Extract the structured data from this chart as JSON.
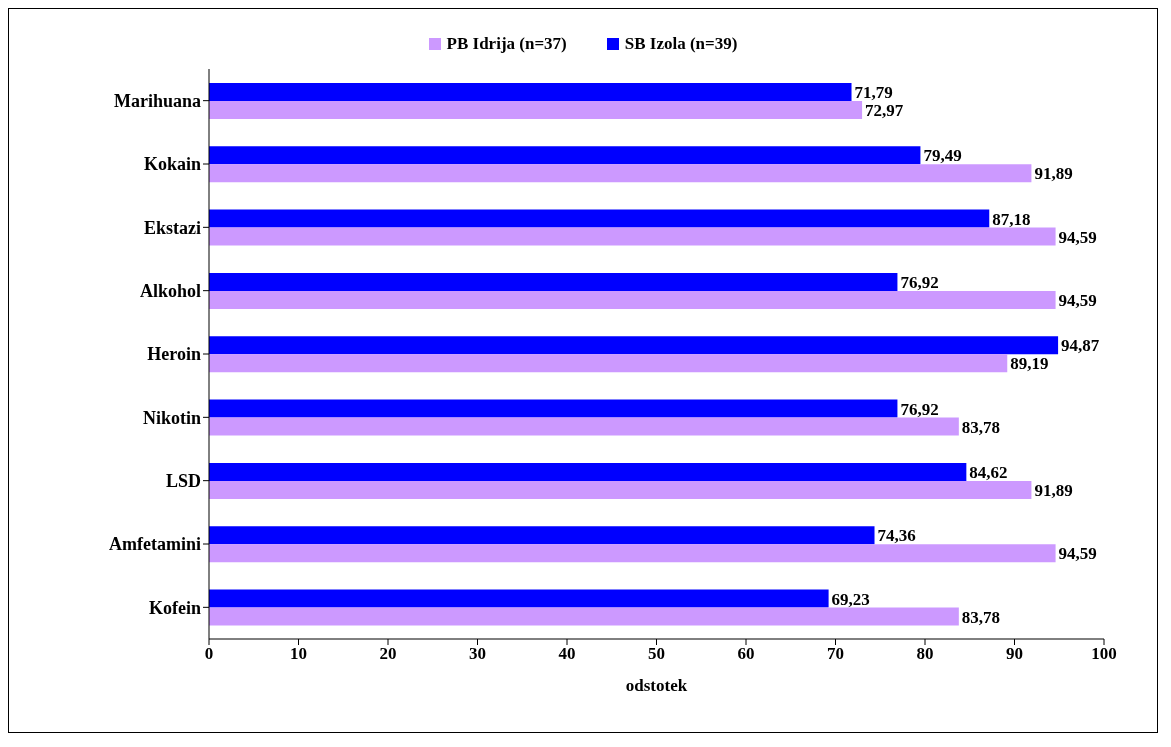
{
  "chart_data": {
    "type": "bar",
    "orientation": "horizontal",
    "xlabel": "odstotek",
    "categories": [
      "Marihuana",
      "Kokain",
      "Ekstazi",
      "Alkohol",
      "Heroin",
      "Nikotin",
      "LSD",
      "Amfetamini",
      "Kofein"
    ],
    "series": [
      {
        "name": "PB Idrija (n=37)",
        "color": "#cc99ff",
        "values": [
          72.97,
          91.89,
          94.59,
          94.59,
          89.19,
          83.78,
          91.89,
          94.59,
          83.78
        ],
        "value_labels": [
          "72,97",
          "91,89",
          "94,59",
          "94,59",
          "89,19",
          "83,78",
          "91,89",
          "94,59",
          "83,78"
        ]
      },
      {
        "name": "SB Izola (n=39)",
        "color": "#0000ff",
        "values": [
          71.79,
          79.49,
          87.18,
          76.92,
          94.87,
          76.92,
          84.62,
          74.36,
          69.23
        ],
        "value_labels": [
          "71,79",
          "79,49",
          "87,18",
          "76,92",
          "94,87",
          "76,92",
          "84,62",
          "74,36",
          "69,23"
        ]
      }
    ],
    "xlim": [
      0,
      100
    ],
    "xticks": [
      0,
      10,
      20,
      30,
      40,
      50,
      60,
      70,
      80,
      90,
      100
    ],
    "legend": "top",
    "grid": false
  }
}
